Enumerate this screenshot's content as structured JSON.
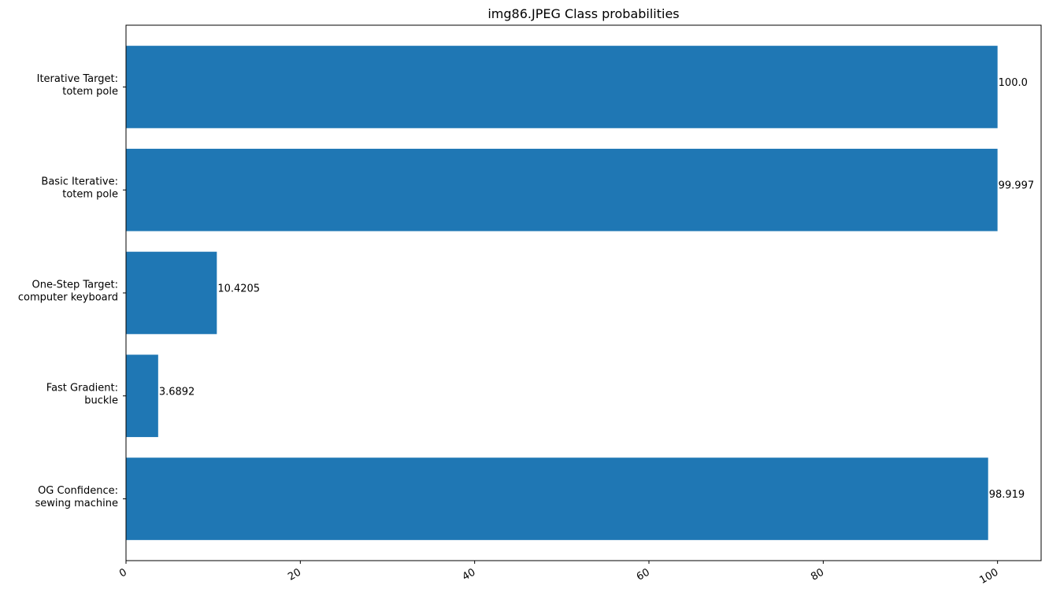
{
  "chart_data": {
    "type": "bar",
    "orientation": "horizontal",
    "title": "img86.JPEG Class probabilities",
    "xlabel": "",
    "ylabel": "",
    "categories": [
      [
        "OG Confidence:",
        "sewing machine"
      ],
      [
        "Fast Gradient:",
        "buckle"
      ],
      [
        "One-Step Target:",
        "computer keyboard"
      ],
      [
        "Basic Iterative:",
        "totem pole"
      ],
      [
        "Iterative Target:",
        "totem pole"
      ]
    ],
    "values": [
      98.919,
      3.6892,
      10.4205,
      99.997,
      100.0
    ],
    "value_labels": [
      "98.919",
      "3.6892",
      "10.4205",
      "99.997",
      "100.0"
    ],
    "xlim": [
      0,
      105
    ],
    "xticks": [
      0,
      20,
      40,
      60,
      80,
      100
    ],
    "xtick_labels": [
      "0",
      "20",
      "40",
      "60",
      "80",
      "100"
    ],
    "xtick_rotation": "30 degrees",
    "grid": false,
    "legend": "none",
    "bar_color": "#1f77b4"
  }
}
